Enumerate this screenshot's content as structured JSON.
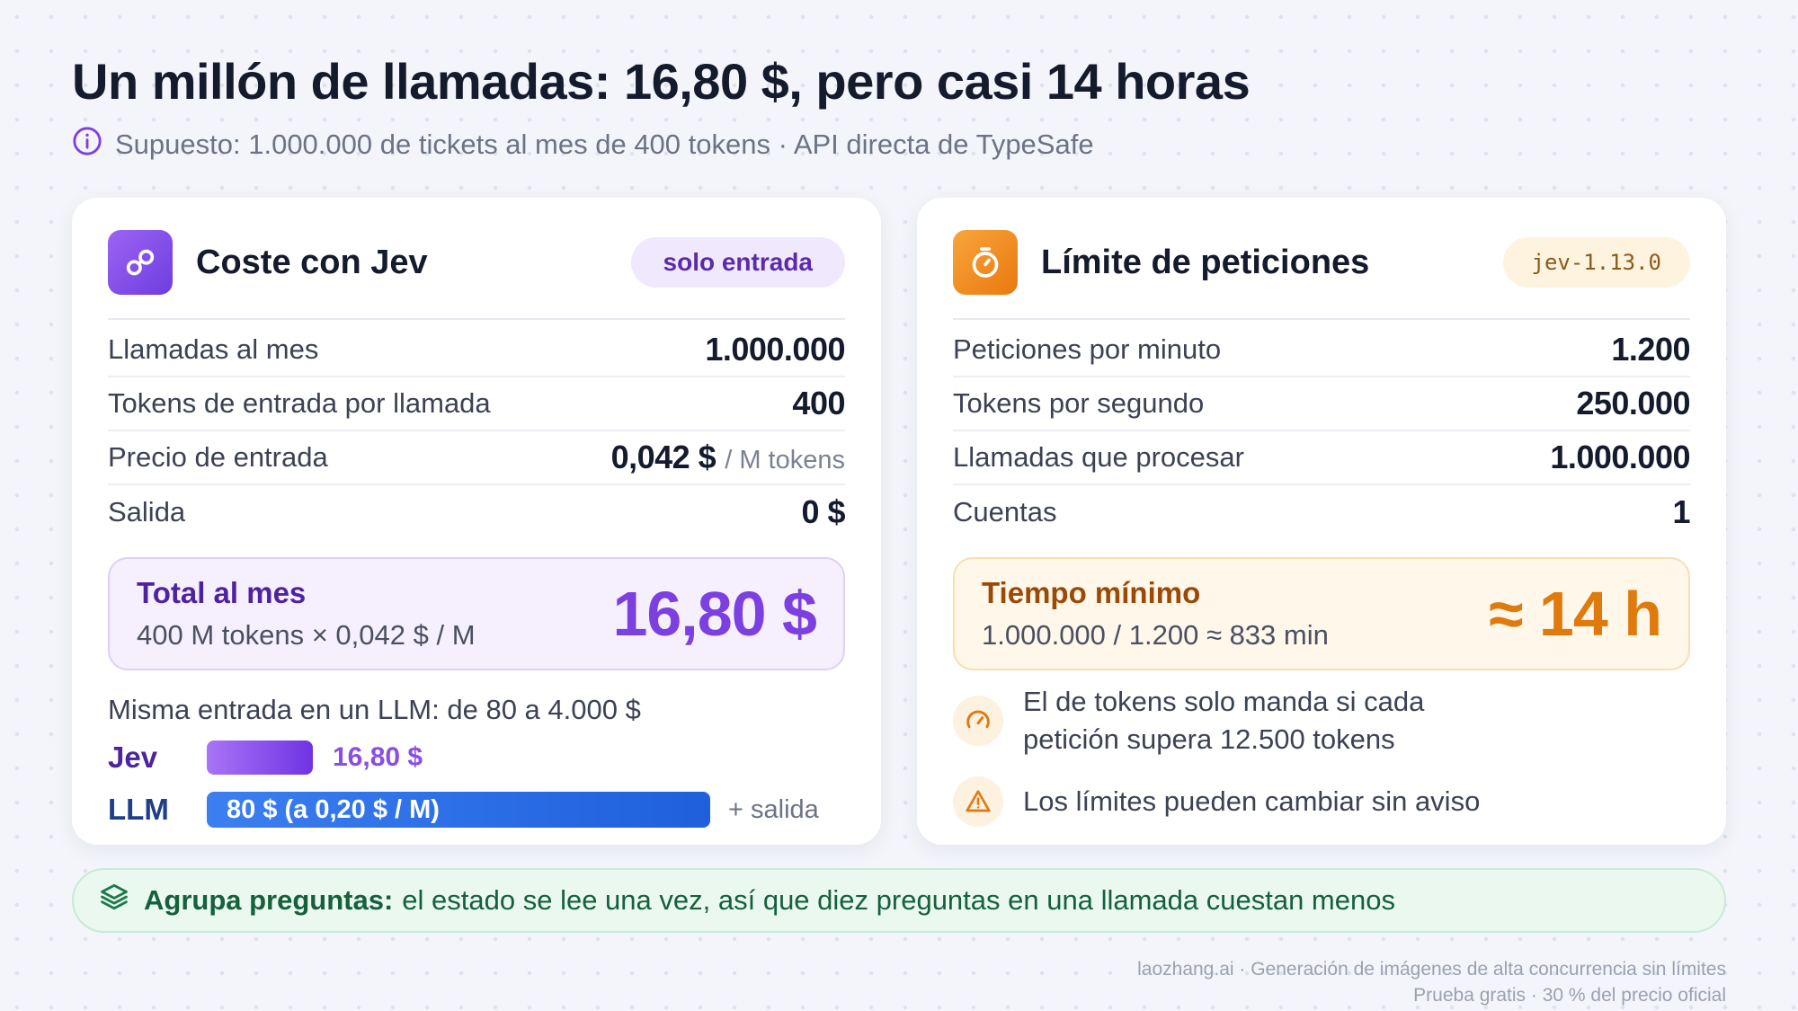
{
  "header": {
    "title": "Un millón de llamadas: 16,80 $, pero casi 14 horas",
    "subtitle": "Supuesto: 1.000.000 de tickets al mes de 400 tokens · API directa de TypeSafe",
    "subtitle_icon": "info-icon"
  },
  "cost_card": {
    "icon": "link-icon",
    "title": "Coste con Jev",
    "badge": "solo entrada",
    "rows": [
      {
        "label": "Llamadas al mes",
        "value": "1.000.000",
        "unit": ""
      },
      {
        "label": "Tokens de entrada por llamada",
        "value": "400",
        "unit": ""
      },
      {
        "label": "Precio de entrada",
        "value": "0,042 $",
        "unit": "/ M tokens"
      },
      {
        "label": "Salida",
        "value": "0 $",
        "unit": ""
      }
    ],
    "total": {
      "label": "Total al mes",
      "formula": "400 M tokens × 0,042 $ / M",
      "value": "16,80 $"
    },
    "comparison": {
      "title": "Misma entrada en un LLM: de 80 a 4.000 $",
      "jev_label": "Jev",
      "jev_value": "16,80 $",
      "llm_label": "LLM",
      "llm_value": "80 $ (a 0,20 $ / M)",
      "llm_extra": "+ salida"
    }
  },
  "limits_card": {
    "icon": "stopwatch-icon",
    "title": "Límite de peticiones",
    "badge": "jev-1.13.0",
    "rows": [
      {
        "label": "Peticiones por minuto",
        "value": "1.200"
      },
      {
        "label": "Tokens por segundo",
        "value": "250.000"
      },
      {
        "label": "Llamadas que procesar",
        "value": "1.000.000"
      },
      {
        "label": "Cuentas",
        "value": "1"
      }
    ],
    "total": {
      "label": "Tiempo mínimo",
      "formula": "1.000.000 / 1.200 ≈ 833 min",
      "value": "≈ 14 h"
    },
    "notes": [
      {
        "icon": "gauge-icon",
        "text": "El de tokens solo manda si cada petición supera 12.500 tokens"
      },
      {
        "icon": "warning-icon",
        "text": "Los límites pueden cambiar sin aviso"
      }
    ]
  },
  "tip": {
    "icon": "layers-icon",
    "strong": "Agrupa preguntas:",
    "text": "el estado se lee una vez, así que diez preguntas en una llamada cuestan menos"
  },
  "footer": {
    "line1": "laozhang.ai · Generación de imágenes de alta concurrencia sin límites",
    "line2": "Prueba gratis · 30 % del precio oficial"
  },
  "colors": {
    "accent_purple": "#7c3fe0",
    "accent_orange": "#df7a0c",
    "llm_blue": "#2a6ee6",
    "tip_green": "#14613b"
  }
}
